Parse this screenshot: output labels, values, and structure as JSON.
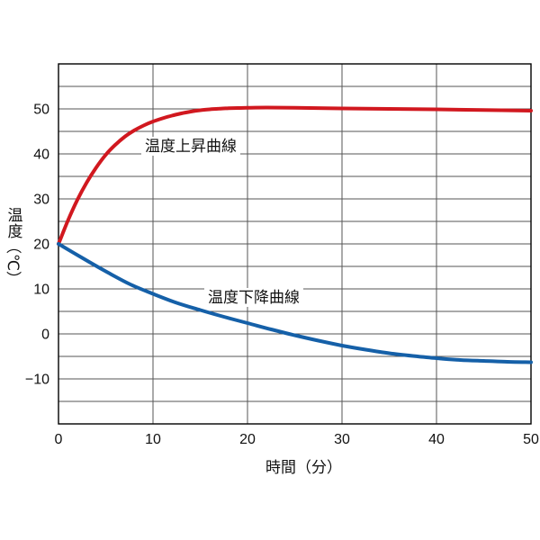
{
  "page": {
    "background": "#ffffff"
  },
  "chart_data": {
    "type": "line",
    "title": "",
    "xlabel": "時間（分）",
    "ylabel": "温度（℃）",
    "ylabel_parts": {
      "kanji": "温度",
      "unit": "（℃）"
    },
    "xlim": [
      0,
      50
    ],
    "ylim": [
      -20,
      60
    ],
    "x_ticks": [
      0,
      10,
      20,
      30,
      40,
      50
    ],
    "y_ticks": [
      -10,
      0,
      10,
      20,
      30,
      40,
      50
    ],
    "x_grid_step": 10,
    "y_grid_step": 5,
    "grid": true,
    "legend_position": "inline-labels",
    "colors": {
      "grid": "#555555",
      "frame": "#000000",
      "text": "#111111"
    },
    "series": [
      {
        "name": "温度上昇曲線",
        "color": "#d1181f",
        "points": [
          [
            0,
            20
          ],
          [
            1,
            25.2
          ],
          [
            2,
            29.8
          ],
          [
            3,
            33.7
          ],
          [
            4,
            37.0
          ],
          [
            5,
            39.8
          ],
          [
            6,
            42.0
          ],
          [
            7,
            43.8
          ],
          [
            8,
            45.2
          ],
          [
            9,
            46.3
          ],
          [
            10,
            47.2
          ],
          [
            11,
            47.9
          ],
          [
            12,
            48.5
          ],
          [
            13,
            49.0
          ],
          [
            14,
            49.4
          ],
          [
            15,
            49.7
          ],
          [
            16,
            49.9
          ],
          [
            17,
            50.05
          ],
          [
            18,
            50.15
          ],
          [
            19,
            50.2
          ],
          [
            20,
            50.25
          ],
          [
            22,
            50.3
          ],
          [
            25,
            50.25
          ],
          [
            30,
            50.1
          ],
          [
            35,
            50.0
          ],
          [
            40,
            49.9
          ],
          [
            45,
            49.75
          ],
          [
            50,
            49.6
          ]
        ]
      },
      {
        "name": "温度下降曲線",
        "color": "#1560a8",
        "points": [
          [
            0,
            20
          ],
          [
            2.5,
            16.9
          ],
          [
            5,
            13.9
          ],
          [
            7.5,
            11.1
          ],
          [
            10,
            8.9
          ],
          [
            12.5,
            6.9
          ],
          [
            15,
            5.3
          ],
          [
            17.5,
            3.8
          ],
          [
            20,
            2.4
          ],
          [
            22.5,
            1.0
          ],
          [
            25,
            -0.3
          ],
          [
            27.5,
            -1.5
          ],
          [
            30,
            -2.6
          ],
          [
            32.5,
            -3.5
          ],
          [
            35,
            -4.3
          ],
          [
            37.5,
            -4.9
          ],
          [
            40,
            -5.4
          ],
          [
            42.5,
            -5.8
          ],
          [
            45,
            -6.0
          ],
          [
            47.5,
            -6.2
          ],
          [
            50,
            -6.3
          ]
        ]
      }
    ]
  }
}
